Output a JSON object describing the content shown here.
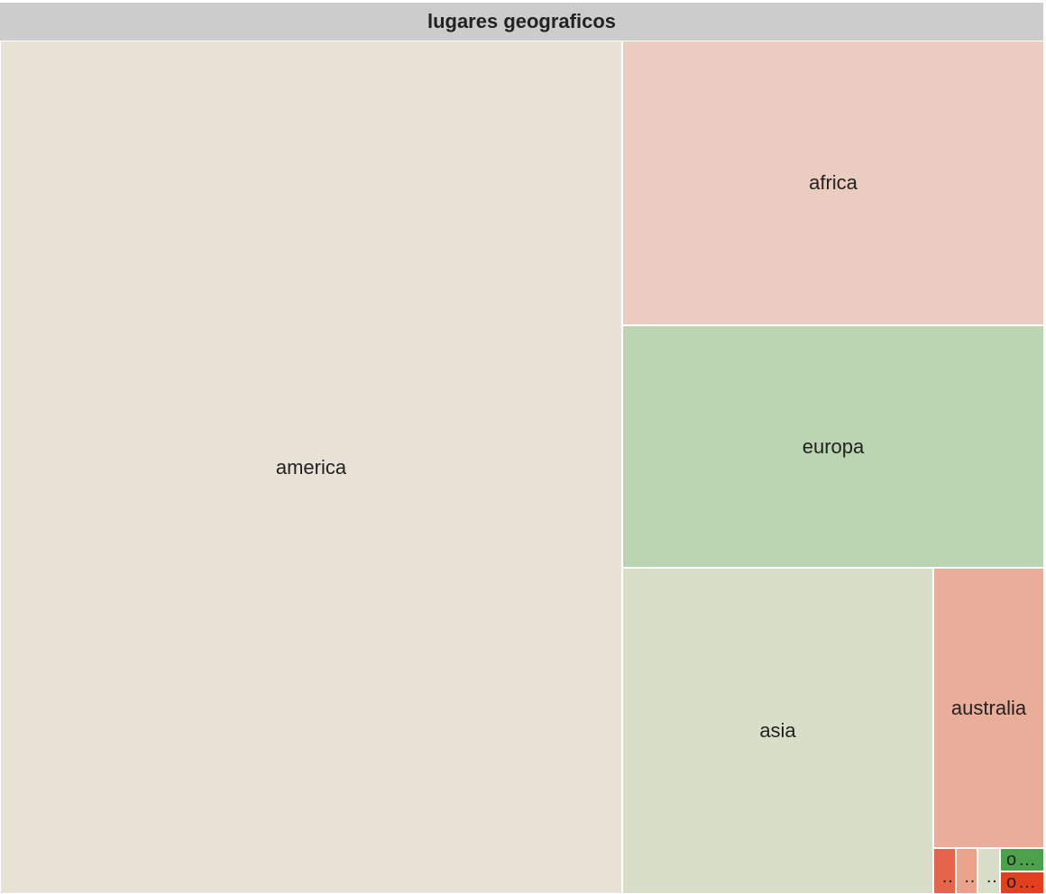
{
  "chart_data": {
    "type": "treemap",
    "title": "lugares geograficos",
    "items": [
      {
        "name": "america",
        "label": "america",
        "color": "#e8e2d6",
        "relative_size": 0.5955
      },
      {
        "name": "africa",
        "label": "africa",
        "color": "#eacdc0",
        "relative_size": 0.1262
      },
      {
        "name": "europa",
        "label": "europa",
        "color": "#bbd4b1",
        "relative_size": 0.1065
      },
      {
        "name": "asia",
        "label": "asia",
        "color": "#d8dec8",
        "relative_size": 0.1097
      },
      {
        "name": "australia",
        "label": "australia",
        "color": "#eaad9a",
        "relative_size": 0.0438
      },
      {
        "name": "small-1",
        "label": "…",
        "color": "#e4654a",
        "relative_size": 0.0018
      },
      {
        "name": "small-2",
        "label": "…",
        "color": "#eba28b",
        "relative_size": 0.0017
      },
      {
        "name": "small-3",
        "label": "…",
        "color": "#d8dec8",
        "relative_size": 0.0017
      },
      {
        "name": "small-4",
        "label": "o…",
        "color": "#4ca24b",
        "relative_size": 0.0008
      },
      {
        "name": "small-5",
        "label": "o…",
        "color": "#e2401f",
        "relative_size": 0.0008
      }
    ]
  }
}
